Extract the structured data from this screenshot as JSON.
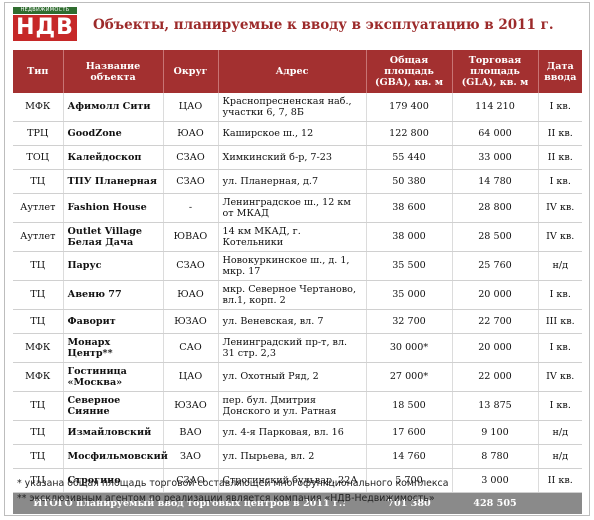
{
  "logo": {
    "tag": "НЕДВИЖИМОСТЬ",
    "mark": "НДВ"
  },
  "title": "Объекты, планируемые к вводу в эксплуатацию в 2011 г.",
  "columns": [
    "Тип",
    "Название объекта",
    "Округ",
    "Адрес",
    "Общая площадь (GBA), кв. м",
    "Торговая площадь (GLA), кв. м",
    "Дата ввода"
  ],
  "rows": [
    {
      "type": "МФК",
      "name": "Афимолл Сити",
      "district": "ЦАО",
      "address": "Краснопресненская наб., участки 6, 7, 8Б",
      "gba": "179 400",
      "gla": "114 210",
      "date": "I кв."
    },
    {
      "type": "ТРЦ",
      "name": "GoodZone",
      "district": "ЮАО",
      "address": "Каширское ш., 12",
      "gba": "122 800",
      "gla": "64 000",
      "date": "II кв."
    },
    {
      "type": "ТОЦ",
      "name": "Калейдоскоп",
      "district": "СЗАО",
      "address": "Химкинский б-р, 7-23",
      "gba": "55 440",
      "gla": "33 000",
      "date": "II кв."
    },
    {
      "type": "ТЦ",
      "name": "ТПУ Планерная",
      "district": "СЗАО",
      "address": "ул. Планерная, д.7",
      "gba": "50 380",
      "gla": "14 780",
      "date": "I кв."
    },
    {
      "type": "Аутлет",
      "name": "Fashion House",
      "district": "-",
      "address": "Ленинградское ш., 12 км от МКАД",
      "gba": "38 600",
      "gla": "28 800",
      "date": "IV кв."
    },
    {
      "type": "Аутлет",
      "name": "Outlet Village Белая Дача",
      "district": "ЮВАО",
      "address": "14 км МКАД, г. Котельники",
      "gba": "38 000",
      "gla": "28 500",
      "date": "IV кв."
    },
    {
      "type": "ТЦ",
      "name": "Парус",
      "district": "СЗАО",
      "address": "Новокуркинское ш., д. 1, мкр. 17",
      "gba": "35 500",
      "gla": "25 760",
      "date": "н/д"
    },
    {
      "type": "ТЦ",
      "name": "Авеню 77",
      "district": "ЮАО",
      "address": "мкр. Северное Чертаново, вл.1, корп. 2",
      "gba": "35 000",
      "gla": "20 000",
      "date": "I кв."
    },
    {
      "type": "ТЦ",
      "name": "Фаворит",
      "district": "ЮЗАО",
      "address": "ул. Веневская, вл. 7",
      "gba": "32 700",
      "gla": "22 700",
      "date": "III кв."
    },
    {
      "type": "МФК",
      "name": "Монарх Центр**",
      "district": "САО",
      "address": "Ленинградский пр-т, вл. 31 стр. 2,3",
      "gba": "30 000*",
      "gla": "20 000",
      "date": "I кв."
    },
    {
      "type": "МФК",
      "name": "Гостиница «Москва»",
      "district": "ЦАО",
      "address": "ул. Охотный Ряд, 2",
      "gba": "27 000*",
      "gla": "22 000",
      "date": "IV кв."
    },
    {
      "type": "ТЦ",
      "name": "Северное Сияние",
      "district": "ЮЗАО",
      "address": "пер. бул. Дмитрия Донского и ул. Ратная",
      "gba": "18 500",
      "gla": "13 875",
      "date": "I кв."
    },
    {
      "type": "ТЦ",
      "name": "Измайловский",
      "district": "ВАО",
      "address": "ул. 4-я Парковая, вл. 16",
      "gba": "17 600",
      "gla": "9 100",
      "date": "н/д"
    },
    {
      "type": "ТЦ",
      "name": "Мосфильмовский",
      "district": "ЗАО",
      "address": "ул. Пырьева, вл. 2",
      "gba": "14 760",
      "gla": "8 780",
      "date": "н/д"
    },
    {
      "type": "ТЦ",
      "name": "Строгино",
      "district": "СЗАО",
      "address": "Строгинский бульвар, 22А",
      "gba": "5 700",
      "gla": "3 000",
      "date": "II кв."
    }
  ],
  "total": {
    "label": "ИТОГО планируемый ввод торговых центров в 2011 г.:",
    "gba": "701 380",
    "gla": "428 505"
  },
  "notes": [
    "*  указана общая площадь торговой составляющей многофункционального комплекса",
    "** эксклюзивным агентом по реализации является компания «НДВ-Недвижимость»"
  ],
  "colors": {
    "header_bg": "#a33030",
    "title": "#9c2a2a",
    "total_bg": "#8a8a8a",
    "logo_red": "#c62828",
    "logo_green": "#2f6d2f"
  }
}
